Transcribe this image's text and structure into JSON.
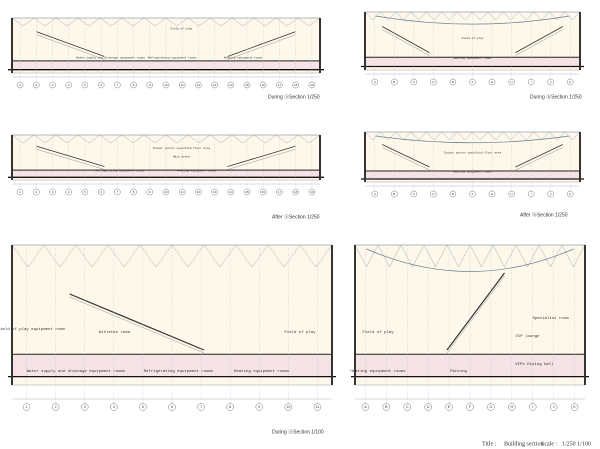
{
  "panels": [
    {
      "caption": "During ⓐSection  1/250",
      "grid": [
        "1",
        "2",
        "3",
        "4",
        "5",
        "6",
        "7",
        "8",
        "9",
        "10",
        "11",
        "12",
        "13",
        "14",
        "15",
        "16",
        "17",
        "18",
        "19"
      ],
      "rooms": [
        "Field of play",
        "Water supply and drainage equipment rooms",
        "Refrigerating equipment rooms",
        "Heating equipment rooms"
      ]
    },
    {
      "caption": "During ⓑSection  1/250",
      "grid": [
        "A",
        "B",
        "C",
        "D",
        "E",
        "F",
        "G",
        "H",
        "I",
        "J",
        "K"
      ],
      "rooms": [
        "Field of play",
        "Heating equipment rooms"
      ]
    },
    {
      "caption": "After ⓐSection  1/250",
      "grid": [
        "1",
        "2",
        "3",
        "4",
        "5",
        "6",
        "7",
        "8",
        "9",
        "10",
        "11",
        "12",
        "13",
        "14",
        "15",
        "16",
        "17",
        "18",
        "19"
      ],
      "rooms": [
        "Indoor sports specified floor area",
        "Main arena",
        "Refrigerating equipment rooms",
        "Heating equipment rooms"
      ]
    },
    {
      "caption": "After ⓑSection  1/250",
      "grid": [
        "A",
        "B",
        "C",
        "D",
        "E",
        "F",
        "G",
        "H",
        "I",
        "J",
        "K"
      ],
      "rooms": [
        "Indoor sports specified floor area",
        "Heating equipment rooms"
      ]
    },
    {
      "caption": "During ⓐSection  1/100",
      "grid": [
        "1",
        "2",
        "3",
        "4",
        "5",
        "6",
        "7",
        "8",
        "9",
        "10",
        "11"
      ],
      "rooms": [
        "Field of play",
        "Field of play equipment room",
        "Athletes room",
        "Water supply and drainage equipment rooms",
        "Refrigerating equipment rooms",
        "Heating equipment rooms"
      ]
    },
    {
      "grid": [
        "A",
        "B",
        "C",
        "D",
        "E",
        "F",
        "G",
        "H",
        "I",
        "J",
        "K"
      ],
      "rooms": [
        "Field of play",
        "Specialist room",
        "VIP lounge",
        "VIPs Dining hall",
        "Heating equipment rooms",
        "Parking"
      ]
    }
  ],
  "title_block": {
    "title_label": "Title :",
    "title": "Building section",
    "scale_label": "Scale :",
    "scale": "1/250  1/100"
  }
}
